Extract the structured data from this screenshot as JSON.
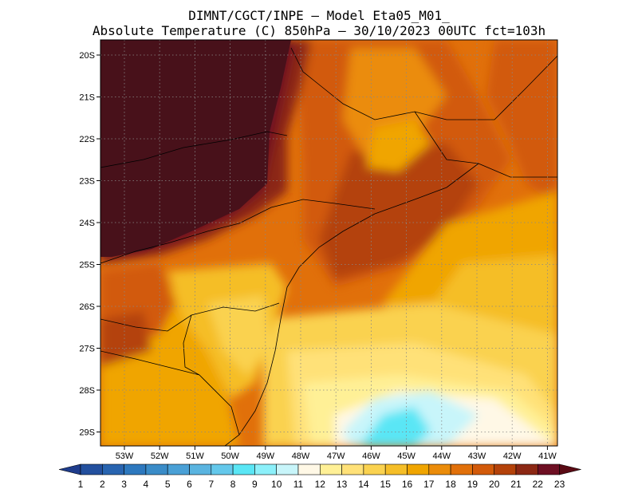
{
  "title": {
    "line1": "DIMNT/CGCT/INPE –  Model Eta05_M01_",
    "line2": "Absolute Temperature (C) 850hPa –  30/10/2023 00UTC fct=103h"
  },
  "map": {
    "lat_labels": [
      "20S",
      "21S",
      "22S",
      "23S",
      "24S",
      "25S",
      "26S",
      "27S",
      "28S",
      "29S"
    ],
    "lon_labels": [
      "53W",
      "52W",
      "51W",
      "50W",
      "49W",
      "48W",
      "47W",
      "46W",
      "45W",
      "44W",
      "43W",
      "42W",
      "41W"
    ],
    "extent": {
      "lon_min": -53.7,
      "lon_max": -40.5,
      "lat_min": -29.4,
      "lat_max": -19.7
    }
  },
  "colorbar": {
    "labels": [
      "1",
      "2",
      "3",
      "4",
      "5",
      "6",
      "7",
      "8",
      "9",
      "10",
      "11",
      "12",
      "13",
      "14",
      "15",
      "16",
      "17",
      "18",
      "19",
      "20",
      "21",
      "22",
      "23"
    ],
    "colors": [
      "#1e3c8c",
      "#23509e",
      "#2864b0",
      "#2d78be",
      "#3a8cc8",
      "#4aa0d6",
      "#5ab4e0",
      "#64c8eb",
      "#5ae6f5",
      "#8cf0fa",
      "#c8f5fa",
      "#fff8e6",
      "#fff096",
      "#ffe178",
      "#fad250",
      "#f5be28",
      "#f0a500",
      "#eb8c0a",
      "#e1700a",
      "#d25a0a",
      "#b4420a",
      "#8c2814",
      "#6e0f23",
      "#5a0a14"
    ]
  },
  "colors": {
    "border": "#000000",
    "grid": "#888888"
  }
}
